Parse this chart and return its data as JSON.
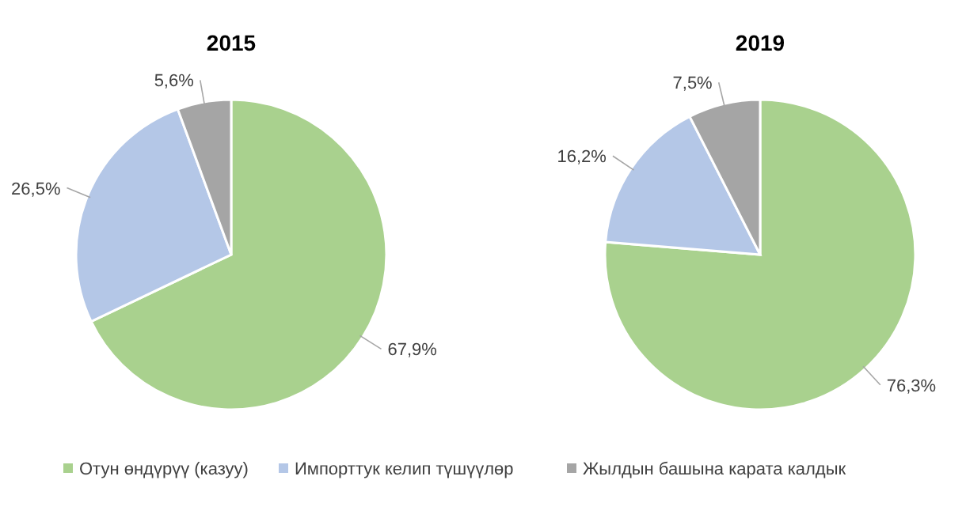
{
  "chart_data": [
    {
      "type": "pie",
      "title": "2015",
      "categories": [
        "Отун өндүрүү (казуу)",
        "Импорттук келип түшүүлөр",
        "Жылдын башына карата калдык"
      ],
      "values": [
        67.9,
        26.5,
        5.6
      ],
      "value_labels": [
        "67,9%",
        "26,5%",
        "5,6%"
      ],
      "colors": [
        "#a9d18e",
        "#b4c7e7",
        "#a5a5a5"
      ],
      "legend": "bottom"
    },
    {
      "type": "pie",
      "title": "2019",
      "categories": [
        null,
        null,
        null
      ],
      "values": [
        76.3,
        16.2,
        7.5
      ],
      "value_labels": [
        "76,3%",
        "16,2%",
        "7,5%"
      ],
      "colors": [
        "#a9d18e",
        "#b4c7e7",
        "#a5a5a5"
      ]
    }
  ]
}
